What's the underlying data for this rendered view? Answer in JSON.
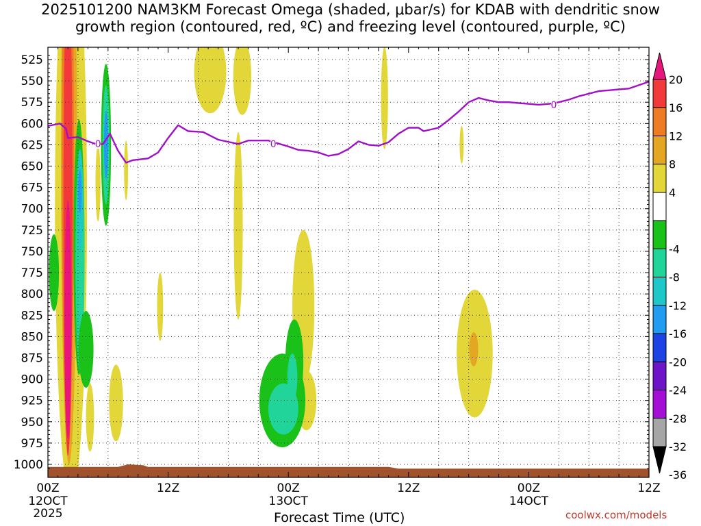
{
  "title": {
    "line1": "2025101200 NAM3KM Forecast Omega (shaded, μbar/s) for KDAB with dendritic snow",
    "line2": "growth region (contoured, red, ºC) and freezing level (contoured, purple, ºC)"
  },
  "credit": "coolwx.com/models",
  "chart_data": {
    "type": "heatmap",
    "xlabel": "Forecast Time (UTC)",
    "x_range_hours": [
      0,
      60
    ],
    "x_ticks": [
      {
        "hour": 0,
        "label": "00Z",
        "date": "12OCT",
        "year": "2025"
      },
      {
        "hour": 12,
        "label": "12Z"
      },
      {
        "hour": 24,
        "label": "00Z",
        "date": "13OCT"
      },
      {
        "hour": 36,
        "label": "12Z"
      },
      {
        "hour": 48,
        "label": "00Z",
        "date": "14OCT"
      },
      {
        "hour": 60,
        "label": "12Z"
      }
    ],
    "y_ticks": [
      525,
      550,
      575,
      600,
      625,
      650,
      675,
      700,
      725,
      750,
      775,
      800,
      825,
      850,
      875,
      900,
      925,
      950,
      975,
      1000
    ],
    "y_range_hPa": [
      515,
      1010
    ],
    "grid": true,
    "colorbar": {
      "labels": [
        "20",
        "16",
        "12",
        "8",
        "4",
        "-4",
        "-8",
        "-12",
        "-16",
        "-20",
        "-24",
        "-28",
        "-32",
        "-36"
      ],
      "colors": [
        "#e8167c",
        "#f33a3a",
        "#ee7c24",
        "#e5a723",
        "#e3d638",
        "#ffffff",
        "#19c119",
        "#20d49a",
        "#1fc8c8",
        "#219cf0",
        "#1e43e4",
        "#6d14c8",
        "#a40fd6",
        "#a6a6a6",
        "#000000"
      ]
    },
    "freezing_level": {
      "label": "0",
      "color": "#a010c8",
      "points": [
        [
          0,
          603
        ],
        [
          1.2,
          600
        ],
        [
          1.8,
          606
        ],
        [
          2,
          617
        ],
        [
          3,
          616
        ],
        [
          4,
          621
        ],
        [
          5,
          625
        ],
        [
          5.5,
          624
        ],
        [
          6.2,
          612
        ],
        [
          7,
          632
        ],
        [
          7.8,
          646
        ],
        [
          8.5,
          643
        ],
        [
          10,
          641
        ],
        [
          11,
          634
        ],
        [
          12,
          617
        ],
        [
          13,
          602
        ],
        [
          14,
          609
        ],
        [
          15.5,
          610
        ],
        [
          17,
          619
        ],
        [
          19,
          624
        ],
        [
          20,
          620
        ],
        [
          22,
          620
        ],
        [
          24,
          627
        ],
        [
          25,
          631
        ],
        [
          26,
          632
        ],
        [
          27,
          634
        ],
        [
          28,
          638
        ],
        [
          29,
          636
        ],
        [
          30,
          630
        ],
        [
          31,
          621
        ],
        [
          32,
          625
        ],
        [
          33,
          626
        ],
        [
          34,
          622
        ],
        [
          35,
          612
        ],
        [
          36,
          605
        ],
        [
          37,
          605
        ],
        [
          37.5,
          609
        ],
        [
          39,
          605
        ],
        [
          40,
          596
        ],
        [
          41,
          586
        ],
        [
          42,
          575
        ],
        [
          43,
          570
        ],
        [
          44,
          573
        ],
        [
          45,
          575
        ],
        [
          46,
          575
        ],
        [
          47,
          576
        ],
        [
          48,
          577
        ],
        [
          49,
          578
        ],
        [
          50,
          577
        ],
        [
          51,
          575
        ],
        [
          52,
          572
        ],
        [
          53,
          568
        ],
        [
          54,
          565
        ],
        [
          55,
          562
        ],
        [
          56,
          561
        ],
        [
          57,
          560
        ],
        [
          58,
          559
        ],
        [
          59,
          555
        ],
        [
          60,
          551
        ]
      ],
      "label_positions": [
        [
          5.0,
          624
        ],
        [
          22.5,
          624
        ],
        [
          50.5,
          578
        ]
      ]
    },
    "ground": {
      "color": "#a0522d",
      "points": [
        [
          0,
          1003
        ],
        [
          7,
          1003
        ],
        [
          8,
          1000
        ],
        [
          9.5,
          1001
        ],
        [
          10,
          1003
        ],
        [
          34,
          1003
        ],
        [
          35,
          1005
        ],
        [
          60,
          1005
        ]
      ]
    },
    "omega_regions": [
      {
        "level": "4",
        "center": [
          2.3,
          700
        ],
        "hours_half_width": 1.6,
        "hpa_half_height": 340,
        "shape": "main"
      },
      {
        "level": "8",
        "center": [
          2.1,
          640
        ],
        "hours_half_width": 0.8,
        "hpa_half_height": 360
      },
      {
        "level": "12",
        "center": [
          2.0,
          640
        ],
        "hours_half_width": 0.6,
        "hpa_half_height": 340
      },
      {
        "level": "16",
        "center": [
          2.0,
          700
        ],
        "hours_half_width": 0.45,
        "hpa_half_height": 290
      },
      {
        "level": "20",
        "center": [
          2.0,
          830
        ],
        "hours_half_width": 0.35,
        "hpa_half_height": 140
      },
      {
        "level": "-4",
        "center": [
          3.1,
          745
        ],
        "hours_half_width": 0.55,
        "hpa_half_height": 150
      },
      {
        "level": "-8",
        "center": [
          3.2,
          760
        ],
        "hours_half_width": 0.45,
        "hpa_half_height": 130
      },
      {
        "level": "-12",
        "center": [
          3.2,
          690
        ],
        "hours_half_width": 0.3,
        "hpa_half_height": 60
      },
      {
        "level": "-16",
        "center": [
          3.2,
          680
        ],
        "hours_half_width": 0.18,
        "hpa_half_height": 25
      },
      {
        "level": "-4",
        "center": [
          5.8,
          625
        ],
        "hours_half_width": 0.5,
        "hpa_half_height": 95
      },
      {
        "level": "-8",
        "center": [
          5.8,
          625
        ],
        "hours_half_width": 0.35,
        "hpa_half_height": 70
      },
      {
        "level": "-16",
        "center": [
          5.8,
          625
        ],
        "hours_half_width": 0.2,
        "hpa_half_height": 40
      },
      {
        "level": "-4",
        "center": [
          0.6,
          775
        ],
        "hours_half_width": 0.5,
        "hpa_half_height": 45
      },
      {
        "level": "-4",
        "center": [
          3.8,
          865
        ],
        "hours_half_width": 0.75,
        "hpa_half_height": 45
      },
      {
        "level": "4",
        "center": [
          7.8,
          655
        ],
        "hours_half_width": 0.2,
        "hpa_half_height": 35
      },
      {
        "level": "4",
        "center": [
          5.0,
          670
        ],
        "hours_half_width": 0.25,
        "hpa_half_height": 45
      },
      {
        "level": "4",
        "center": [
          6.8,
          928
        ],
        "hours_half_width": 0.7,
        "hpa_half_height": 45
      },
      {
        "level": "4",
        "center": [
          4.2,
          945
        ],
        "hours_half_width": 0.4,
        "hpa_half_height": 40
      },
      {
        "level": "4",
        "center": [
          11.2,
          815
        ],
        "hours_half_width": 0.3,
        "hpa_half_height": 40
      },
      {
        "level": "4",
        "center": [
          16.2,
          540
        ],
        "hours_half_width": 1.6,
        "hpa_half_height": 48
      },
      {
        "level": "4",
        "center": [
          19.4,
          545
        ],
        "hours_half_width": 0.9,
        "hpa_half_height": 45
      },
      {
        "level": "4",
        "center": [
          19.0,
          720
        ],
        "hours_half_width": 0.45,
        "hpa_half_height": 110
      },
      {
        "level": "4",
        "center": [
          25.5,
          815
        ],
        "hours_half_width": 1.1,
        "hpa_half_height": 90
      },
      {
        "level": "4",
        "center": [
          25.8,
          925
        ],
        "hours_half_width": 1.0,
        "hpa_half_height": 35
      },
      {
        "level": "-4",
        "center": [
          23.4,
          925
        ],
        "hours_half_width": 2.3,
        "hpa_half_height": 55
      },
      {
        "level": "-4",
        "center": [
          24.6,
          880
        ],
        "hours_half_width": 0.9,
        "hpa_half_height": 50
      },
      {
        "level": "-8",
        "center": [
          23.5,
          935
        ],
        "hours_half_width": 1.5,
        "hpa_half_height": 30
      },
      {
        "level": "-8",
        "center": [
          24.4,
          898
        ],
        "hours_half_width": 0.5,
        "hpa_half_height": 28
      },
      {
        "level": "4",
        "center": [
          33.6,
          570
        ],
        "hours_half_width": 0.35,
        "hpa_half_height": 60
      },
      {
        "level": "4",
        "center": [
          41.3,
          625
        ],
        "hours_half_width": 0.2,
        "hpa_half_height": 22
      },
      {
        "level": "4",
        "center": [
          42.6,
          870
        ],
        "hours_half_width": 1.8,
        "hpa_half_height": 75
      },
      {
        "level": "8",
        "center": [
          42.5,
          865
        ],
        "hours_half_width": 0.45,
        "hpa_half_height": 20
      }
    ]
  }
}
